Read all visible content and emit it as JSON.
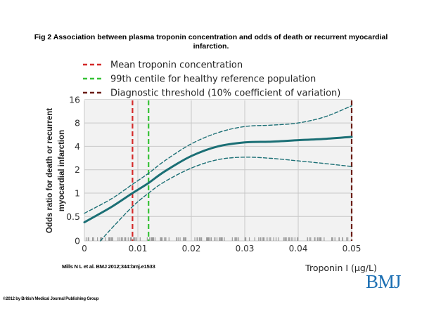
{
  "figure": {
    "title": "Fig 2 Association between plasma troponin concentration and odds of death or recurrent myocardial infarction.",
    "citation": "Mills N L et al. BMJ 2012;344:bmj.e1533",
    "copyright": "©2012 by British Medical Journal Publishing Group",
    "logo_text": "BMJ"
  },
  "colors": {
    "curve": "#1b6f75",
    "mean_line": "#d42a2a",
    "centile_line": "#36c236",
    "threshold_line": "#6b1d14",
    "grid": "#c8c8c8",
    "plot_bg": "#f2f2f2",
    "rug": "#9a9a9a",
    "logo": "#1c6fb3"
  },
  "chart_data": {
    "type": "line",
    "xlabel": "Troponin I (μg/L)",
    "ylabel": "Odds ratio for death or recurrent myocardial infarction",
    "x_ticks": [
      0,
      0.01,
      0.02,
      0.03,
      0.04,
      0.05
    ],
    "x_tick_labels": [
      "0",
      "0.01",
      "0.02",
      "0.03",
      "0.04",
      "0.05"
    ],
    "xlim": [
      0,
      0.05
    ],
    "y_scale": "log2",
    "y_ticks": [
      0,
      0.5,
      1,
      2,
      4,
      8,
      16
    ],
    "y_tick_labels": [
      "0",
      "0.5",
      "1",
      "2",
      "4",
      "8",
      "16"
    ],
    "grid": true,
    "legend_position": "top-left",
    "series": [
      {
        "role": "estimate",
        "style": "solid",
        "x": [
          0,
          0.005,
          0.009,
          0.012,
          0.015,
          0.02,
          0.025,
          0.03,
          0.035,
          0.04,
          0.045,
          0.05
        ],
        "y": [
          0.39,
          0.66,
          1.0,
          1.35,
          1.9,
          3.0,
          4.0,
          4.5,
          4.6,
          4.8,
          5.0,
          5.3
        ]
      },
      {
        "role": "upper 95% CI",
        "style": "dashed",
        "x": [
          0,
          0.005,
          0.009,
          0.012,
          0.015,
          0.02,
          0.025,
          0.03,
          0.035,
          0.04,
          0.045,
          0.05
        ],
        "y": [
          0.55,
          0.84,
          1.3,
          1.8,
          2.6,
          4.3,
          6.0,
          7.2,
          7.5,
          8.0,
          9.6,
          13.3
        ]
      },
      {
        "role": "lower 95% CI",
        "style": "dashed",
        "x": [
          0.003,
          0.005,
          0.009,
          0.012,
          0.015,
          0.02,
          0.025,
          0.03,
          0.035,
          0.04,
          0.045,
          0.05
        ],
        "y": [
          0,
          0.25,
          0.67,
          1.0,
          1.4,
          2.1,
          2.7,
          2.9,
          2.8,
          2.6,
          2.4,
          2.2
        ]
      }
    ],
    "reference_lines": [
      {
        "name": "Mean troponin concentration",
        "x": 0.009,
        "color": "#d42a2a"
      },
      {
        "name": "99th centile for healthy reference population",
        "x": 0.012,
        "color": "#36c236"
      },
      {
        "name": "Diagnostic threshold (10% coefficient of variation)",
        "x": 0.05,
        "color": "#6b1d14"
      }
    ],
    "rug": true
  }
}
